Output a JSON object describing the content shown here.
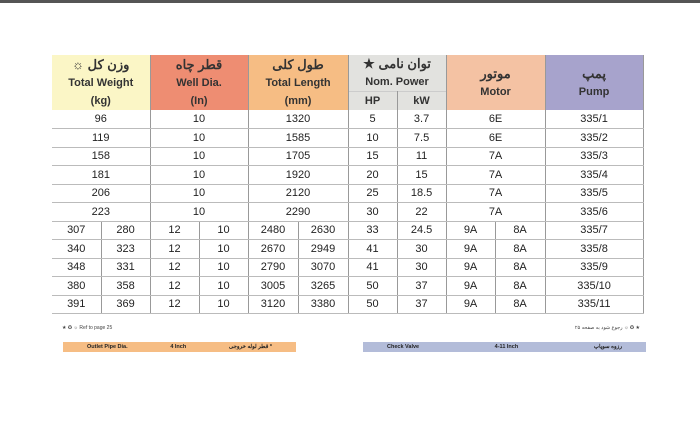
{
  "header": {
    "weight": {
      "fa": "☼ وزن کل",
      "en": "Total Weight",
      "unit": "(kg)"
    },
    "well": {
      "fa": "قطر چاه",
      "en": "Well Dia.",
      "unit": "(In)"
    },
    "length": {
      "fa": "طول کلی",
      "en": "Total Length",
      "unit": "(mm)"
    },
    "power": {
      "fa": "★ توان نامی",
      "en": "Nom. Power",
      "hp": "HP",
      "kw": "kW"
    },
    "motor": {
      "fa": "موتور",
      "en": "Motor"
    },
    "pump": {
      "fa": "پمپ",
      "en": "Pump"
    }
  },
  "rows": [
    {
      "weight": [
        "96"
      ],
      "well": [
        "10"
      ],
      "length": [
        "1320"
      ],
      "hp": "5",
      "kw": "3.7",
      "motor": [
        "6E"
      ],
      "pump": "335/1"
    },
    {
      "weight": [
        "119"
      ],
      "well": [
        "10"
      ],
      "length": [
        "1585"
      ],
      "hp": "10",
      "kw": "7.5",
      "motor": [
        "6E"
      ],
      "pump": "335/2"
    },
    {
      "weight": [
        "158"
      ],
      "well": [
        "10"
      ],
      "length": [
        "1705"
      ],
      "hp": "15",
      "kw": "11",
      "motor": [
        "7A"
      ],
      "pump": "335/3"
    },
    {
      "weight": [
        "181"
      ],
      "well": [
        "10"
      ],
      "length": [
        "1920"
      ],
      "hp": "20",
      "kw": "15",
      "motor": [
        "7A"
      ],
      "pump": "335/4"
    },
    {
      "weight": [
        "206"
      ],
      "well": [
        "10"
      ],
      "length": [
        "2120"
      ],
      "hp": "25",
      "kw": "18.5",
      "motor": [
        "7A"
      ],
      "pump": "335/5"
    },
    {
      "weight": [
        "223"
      ],
      "well": [
        "10"
      ],
      "length": [
        "2290"
      ],
      "hp": "30",
      "kw": "22",
      "motor": [
        "7A"
      ],
      "pump": "335/6"
    },
    {
      "weight": [
        "307",
        "280"
      ],
      "well": [
        "12",
        "10"
      ],
      "length": [
        "2480",
        "2630"
      ],
      "hp": "33",
      "kw": "24.5",
      "motor": [
        "9A",
        "8A"
      ],
      "pump": "335/7"
    },
    {
      "weight": [
        "340",
        "323"
      ],
      "well": [
        "12",
        "10"
      ],
      "length": [
        "2670",
        "2949"
      ],
      "hp": "41",
      "kw": "30",
      "motor": [
        "9A",
        "8A"
      ],
      "pump": "335/8"
    },
    {
      "weight": [
        "348",
        "331"
      ],
      "well": [
        "12",
        "10"
      ],
      "length": [
        "2790",
        "3070"
      ],
      "hp": "41",
      "kw": "30",
      "motor": [
        "9A",
        "8A"
      ],
      "pump": "335/9"
    },
    {
      "weight": [
        "380",
        "358"
      ],
      "well": [
        "12",
        "10"
      ],
      "length": [
        "3005",
        "3265"
      ],
      "hp": "50",
      "kw": "37",
      "motor": [
        "9A",
        "8A"
      ],
      "pump": "335/10"
    },
    {
      "weight": [
        "391",
        "369"
      ],
      "well": [
        "12",
        "10"
      ],
      "length": [
        "3120",
        "3380"
      ],
      "hp": "50",
      "kw": "37",
      "motor": [
        "9A",
        "8A"
      ],
      "pump": "335/11"
    }
  ],
  "footer": {
    "ref_en": "★ ✪ ☼ Ref to page 25",
    "ref_fa": "★ ✪ ☼ رجوع شود به صفحه ۲۵",
    "outlet": {
      "en": "Outlet Pipe Dia.",
      "value": "4 Inch",
      "fa": "قطر لوله خروجی *"
    },
    "valve": {
      "en": "Check Valve",
      "value": "4-11 Inch",
      "fa": "رزوه سوپاپ"
    }
  },
  "colors": {
    "weight": "#fbf6c6",
    "well": "#ee8d72",
    "length": "#f6bd84",
    "power": "#e2e2df",
    "motor": "#f4c2a3",
    "pump": "#a7a3cc"
  }
}
